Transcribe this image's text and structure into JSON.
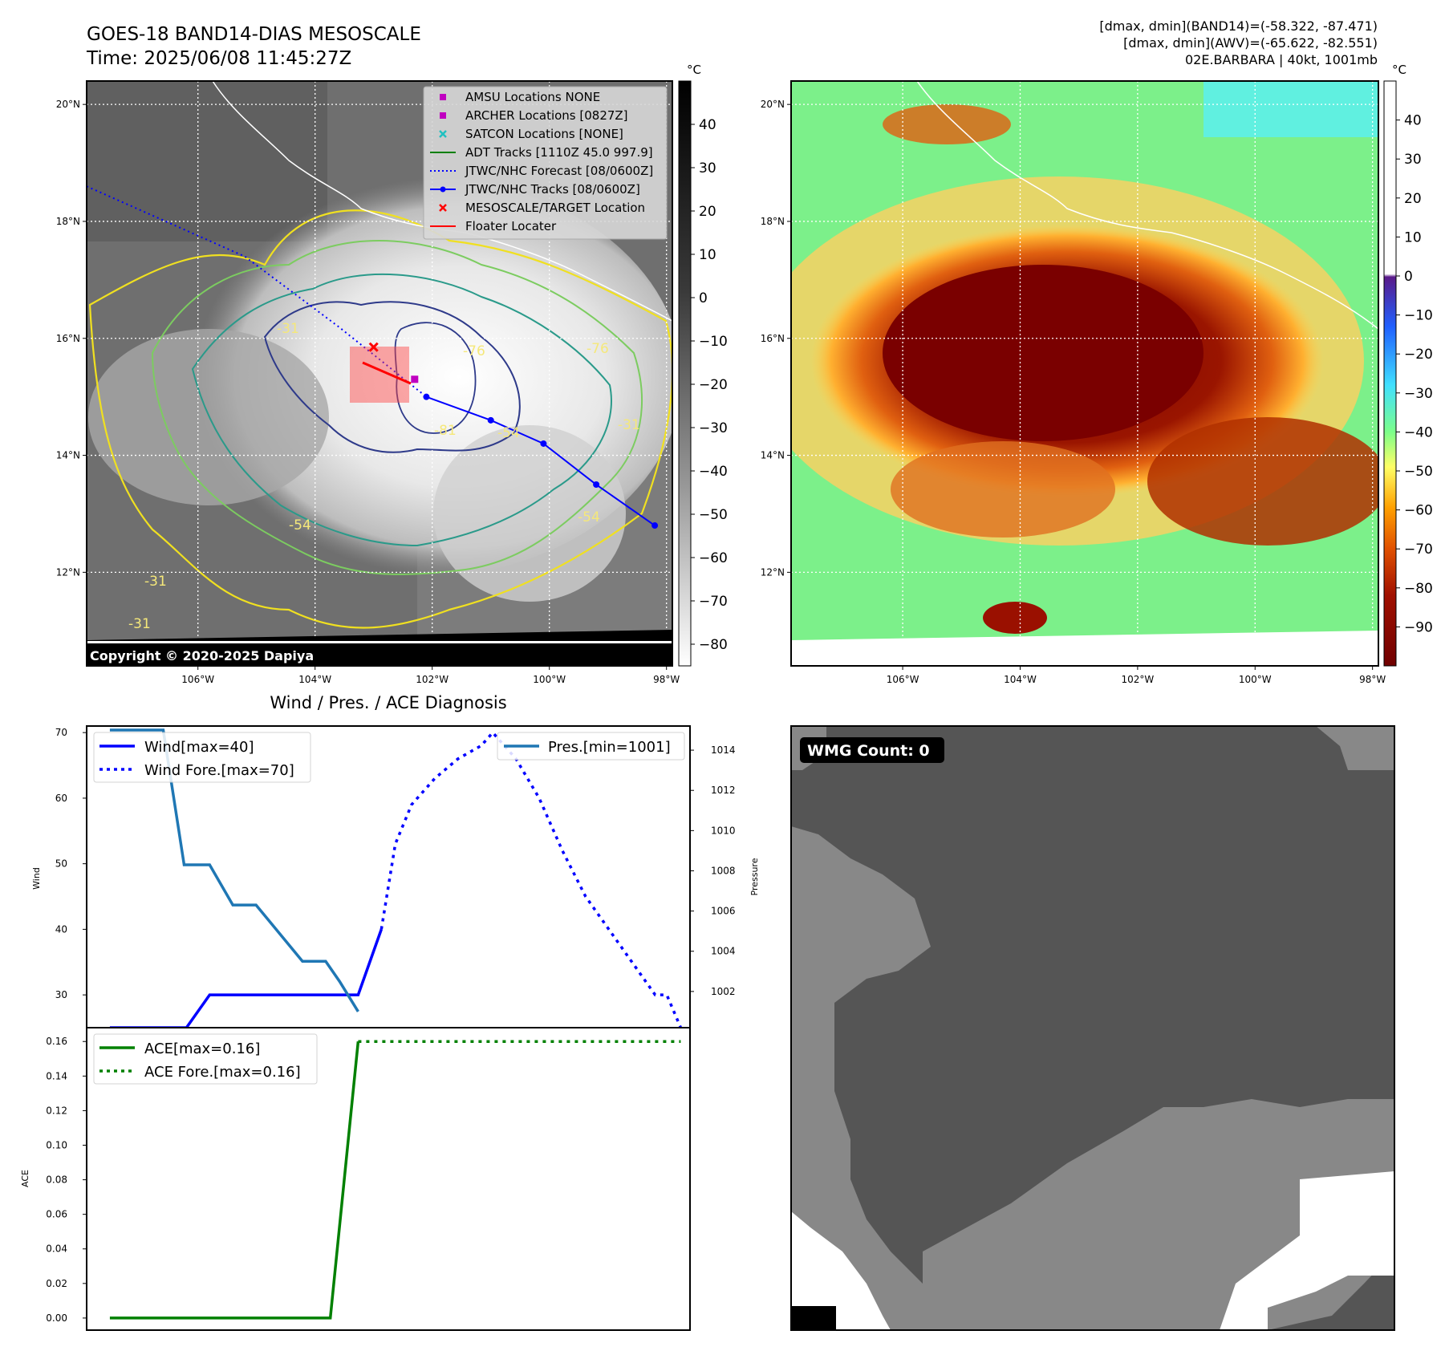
{
  "header": {
    "title_line1": "GOES-18 BAND14-DIAS MESOSCALE",
    "title_line2": "Time: 2025/06/08 11:45:27Z",
    "info_line1": "[dmax, dmin](BAND14)=(-58.322, -87.471)",
    "info_line2": "[dmax, dmin](AWV)=(-65.622, -82.551)",
    "info_line3": "02E.BARBARA | 40kt, 1001mb"
  },
  "map_axes": {
    "lon_ticks": [
      "106°W",
      "104°W",
      "102°W",
      "100°W",
      "98°W"
    ],
    "lat_ticks": [
      "20°N",
      "18°N",
      "16°N",
      "14°N",
      "12°N"
    ],
    "lon_values": [
      -106,
      -104,
      -102,
      -100,
      -98
    ],
    "lat_values": [
      20,
      18,
      16,
      14,
      12
    ],
    "lon_range": [
      -107.9,
      -97.9
    ],
    "lat_range": [
      10.4,
      20.4
    ]
  },
  "ir_panel": {
    "colorbar_unit": "°C",
    "colorbar_ticks": [
      "40",
      "30",
      "20",
      "10",
      "0",
      "−10",
      "−20",
      "−30",
      "−40",
      "−50",
      "−60",
      "−70",
      "−80"
    ],
    "colorbar_values": [
      40,
      30,
      20,
      10,
      0,
      -10,
      -20,
      -30,
      -40,
      -50,
      -60,
      -70,
      -80
    ],
    "colorbar_range": [
      -85,
      50
    ],
    "copyright": "Copyright © 2020-2025 Dapiya",
    "contour_labels": [
      "-31",
      "-31",
      "-54",
      "-54",
      "-76",
      "-76",
      "-81",
      "-31",
      "-54",
      "-31"
    ],
    "legend": [
      {
        "label": "AMSU Locations NONE",
        "marker": "square",
        "color": "#c000c0"
      },
      {
        "label": "ARCHER Locations [0827Z]",
        "marker": "square",
        "color": "#c000c0"
      },
      {
        "label": "SATCON Locations [NONE]",
        "marker": "x",
        "color": "#20c0c0"
      },
      {
        "label": "ADT Tracks [1110Z 45.0 997.9]",
        "marker": "line",
        "color": "#008000"
      },
      {
        "label": "JTWC/NHC Forecast [08/0600Z]",
        "marker": "dotted",
        "color": "#0000ff"
      },
      {
        "label": "JTWC/NHC Tracks [08/0600Z]",
        "marker": "line-dot",
        "color": "#0000ff"
      },
      {
        "label": "MESOSCALE/TARGET Location",
        "marker": "x",
        "color": "#ff0000"
      },
      {
        "label": "Floater Locater",
        "marker": "line",
        "color": "#ff0000"
      }
    ],
    "track_points": [
      {
        "lon": -102.1,
        "lat": 15.0
      },
      {
        "lon": -101.0,
        "lat": 14.6
      },
      {
        "lon": -100.1,
        "lat": 14.2
      },
      {
        "lon": -99.2,
        "lat": 13.5
      },
      {
        "lon": -98.2,
        "lat": 12.8
      }
    ],
    "forecast_track": [
      {
        "lon": -107.9,
        "lat": 18.6
      },
      {
        "lon": -105.2,
        "lat": 17.4
      },
      {
        "lon": -103.6,
        "lat": 16.2
      },
      {
        "lon": -102.6,
        "lat": 15.4
      },
      {
        "lon": -102.1,
        "lat": 15.0
      }
    ],
    "target": {
      "lon": -103.0,
      "lat": 15.85
    },
    "archer": {
      "lon": -102.3,
      "lat": 15.3
    }
  },
  "awv_panel": {
    "colorbar_unit": "°C",
    "colorbar_ticks": [
      "40",
      "30",
      "20",
      "10",
      "0",
      "−10",
      "−20",
      "−30",
      "−40",
      "−50",
      "−60",
      "−70",
      "−80",
      "−90"
    ],
    "colorbar_values": [
      40,
      30,
      20,
      10,
      0,
      -10,
      -20,
      -30,
      -40,
      -50,
      -60,
      -70,
      -80,
      -90
    ],
    "colorbar_range": [
      -100,
      50
    ]
  },
  "wmg_panel": {
    "badge": "WMG Count: 0"
  },
  "diagnosis": {
    "title": "Wind / Pres. / ACE Diagnosis"
  },
  "chart_data": [
    {
      "type": "line",
      "title": "Wind / Pres. / ACE Diagnosis",
      "ylabel": "Wind",
      "y2label": "Pressure",
      "ylim": [
        25,
        71
      ],
      "y2lim": [
        1000.2,
        1015.2
      ],
      "yticks": [
        30,
        40,
        50,
        60,
        70
      ],
      "y2ticks": [
        1002,
        1004,
        1006,
        1008,
        1010,
        1012,
        1014
      ],
      "xlim": [
        0,
        26
      ],
      "legend_left": [
        "Wind[max=40]",
        "Wind Fore.[max=70]"
      ],
      "legend_right": [
        "Pres.[min=1001]"
      ],
      "series": [
        {
          "name": "Wind[max=40]",
          "axis": "left",
          "style": "solid",
          "color": "#0000ff",
          "x": [
            1,
            4.3,
            5.3,
            10.5,
            11.3,
            11.5,
            11.7,
            12.7
          ],
          "values": [
            25,
            25,
            30,
            30,
            30,
            30,
            30,
            40
          ]
        },
        {
          "name": "Wind Fore.[max=70]",
          "axis": "left",
          "style": "dotted",
          "color": "#0000ff",
          "x": [
            12.7,
            13.3,
            14.0,
            15.0,
            16.0,
            17.0,
            17.5,
            18.5,
            19.5,
            20.5,
            21.5,
            22.5,
            23.5,
            24.5,
            25.0,
            25.6
          ],
          "values": [
            40,
            53,
            59,
            63,
            66,
            68,
            70,
            66,
            60,
            52,
            45,
            40,
            35,
            30,
            30,
            25
          ]
        },
        {
          "name": "Pres.[min=1001]",
          "axis": "right",
          "style": "solid",
          "color": "#1f77b4",
          "x": [
            1,
            2.1,
            3.3,
            4.2,
            5.3,
            6.3,
            7.3,
            9.3,
            10.3,
            10.9,
            11.7
          ],
          "values": [
            1015,
            1015,
            1015,
            1008.3,
            1008.3,
            1006.3,
            1006.3,
            1003.5,
            1003.5,
            1002.5,
            1001
          ]
        }
      ]
    },
    {
      "type": "line",
      "ylabel": "ACE",
      "ylim": [
        -0.007,
        0.168
      ],
      "yticks": [
        0.0,
        0.02,
        0.04,
        0.06,
        0.08,
        0.1,
        0.12,
        0.14,
        0.16
      ],
      "ytick_labels": [
        "0.00",
        "0.02",
        "0.04",
        "0.06",
        "0.08",
        "0.10",
        "0.12",
        "0.14",
        "0.16"
      ],
      "xlim": [
        0,
        26
      ],
      "legend": [
        "ACE[max=0.16]",
        "ACE Fore.[max=0.16]"
      ],
      "series": [
        {
          "name": "ACE[max=0.16]",
          "style": "solid",
          "color": "#008000",
          "x": [
            1,
            10.5,
            11.7
          ],
          "values": [
            0,
            0,
            0.16
          ]
        },
        {
          "name": "ACE Fore.[max=0.16]",
          "style": "dotted",
          "color": "#008000",
          "x": [
            11.7,
            25.6
          ],
          "values": [
            0.16,
            0.16
          ]
        }
      ]
    }
  ]
}
